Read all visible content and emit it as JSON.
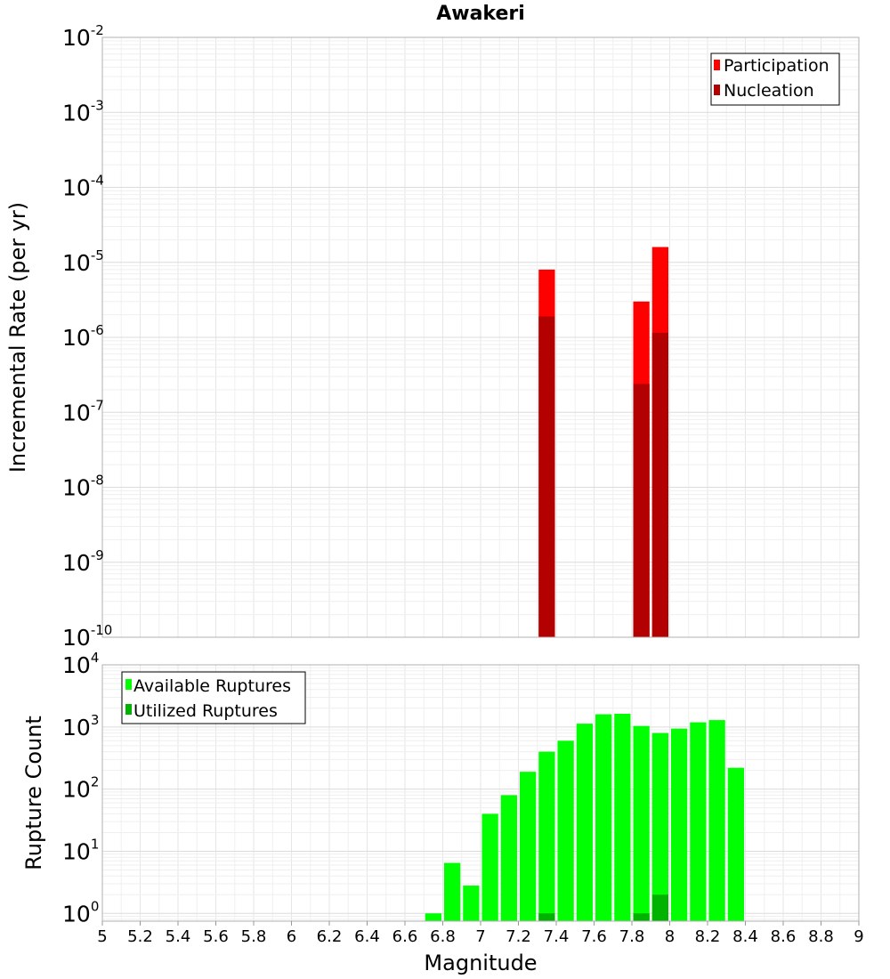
{
  "chart_data": [
    {
      "type": "bar",
      "title": "Awakeri",
      "ylabel": "Incremental Rate (per yr)",
      "xlabel": "",
      "y_scale": "log",
      "ylim": [
        1e-10,
        0.01
      ],
      "xlim": [
        5,
        9
      ],
      "y_tick_exponents": [
        -10,
        -9,
        -8,
        -7,
        -6,
        -5,
        -4,
        -3,
        -2
      ],
      "bin_width": 0.1,
      "grid": true,
      "legend_position": "top-right",
      "series": [
        {
          "name": "Participation",
          "color": "#ff0000",
          "x": [
            7.35,
            7.85,
            7.95
          ],
          "values": [
            8e-06,
            3e-06,
            1.6e-05
          ]
        },
        {
          "name": "Nucleation",
          "color": "#b30000",
          "x": [
            7.35,
            7.85,
            7.95
          ],
          "values": [
            1.9e-06,
            2.4e-07,
            1.15e-06
          ]
        }
      ]
    },
    {
      "type": "bar",
      "title": "",
      "ylabel": "Rupture Count",
      "xlabel": "Magnitude",
      "y_scale": "log",
      "ylim": [
        0.75,
        10000
      ],
      "xlim": [
        5,
        9
      ],
      "y_tick_exponents": [
        0,
        1,
        2,
        3,
        4
      ],
      "bin_width": 0.1,
      "grid": true,
      "legend_position": "top-left",
      "x_ticks": [
        "5",
        "5.2",
        "5.4",
        "5.6",
        "5.8",
        "6",
        "6.2",
        "6.4",
        "6.6",
        "6.8",
        "7",
        "7.2",
        "7.4",
        "7.6",
        "7.8",
        "8",
        "8.2",
        "8.4",
        "8.6",
        "8.8",
        "9"
      ],
      "series": [
        {
          "name": "Available Ruptures",
          "color": "#00ff00",
          "x": [
            6.75,
            6.85,
            6.95,
            7.05,
            7.15,
            7.25,
            7.35,
            7.45,
            7.55,
            7.65,
            7.75,
            7.85,
            7.95,
            8.05,
            8.15,
            8.25,
            8.35
          ],
          "values": [
            1,
            6.5,
            2.8,
            40,
            80,
            190,
            400,
            600,
            1130,
            1600,
            1630,
            1040,
            800,
            940,
            1190,
            1290,
            220
          ]
        },
        {
          "name": "Utilized Ruptures",
          "color": "#00b300",
          "x": [
            7.35,
            7.85,
            7.95
          ],
          "values": [
            1,
            1,
            2
          ]
        }
      ]
    }
  ]
}
